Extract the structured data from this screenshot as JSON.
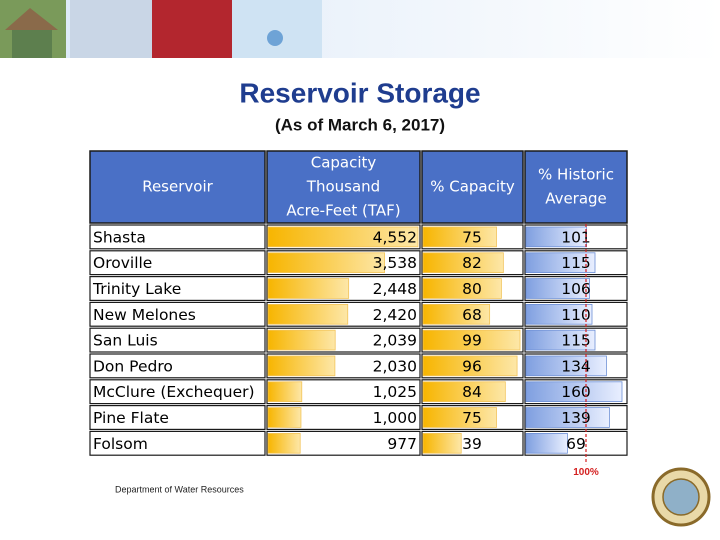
{
  "header": {
    "title": "Reservoir Storage",
    "subtitle": "(As of March 6, 2017)"
  },
  "table": {
    "columns": [
      [
        "Reservoir"
      ],
      [
        "Capacity",
        "Thousand",
        "Acre-Feet (TAF)"
      ],
      [
        "% Capacity"
      ],
      [
        "% Historic",
        "Average"
      ]
    ],
    "rows": [
      [
        "Shasta",
        "4,552",
        "75",
        "101"
      ],
      [
        "Oroville",
        "3,538",
        "82",
        "115"
      ],
      [
        "Trinity Lake",
        "2,448",
        "80",
        "106"
      ],
      [
        "New Melones",
        "2,420",
        "68",
        "110"
      ],
      [
        "San Luis",
        "2,039",
        "99",
        "115"
      ],
      [
        "Don Pedro",
        "2,030",
        "96",
        "134"
      ],
      [
        "McClure (Exchequer)",
        "1,025",
        "84",
        "160"
      ],
      [
        "Pine Flate",
        "1,000",
        "75",
        "139"
      ],
      [
        "Folsom",
        "977",
        "39",
        "69"
      ]
    ],
    "reference_label": "100%"
  },
  "footer": {
    "text": "Department of Water Resources"
  }
}
